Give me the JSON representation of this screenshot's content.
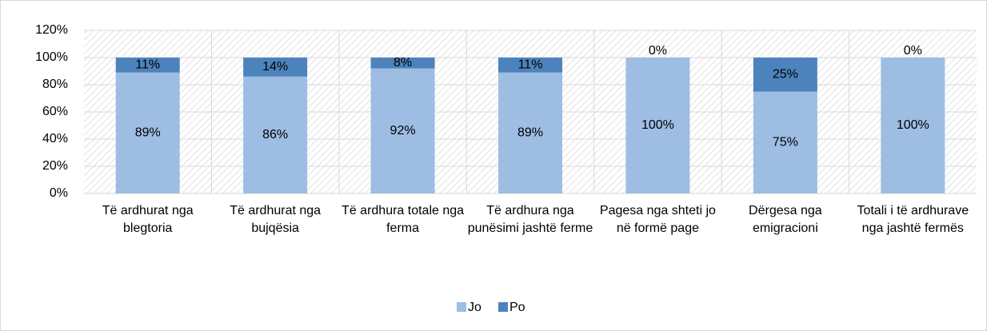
{
  "chart_data": {
    "type": "stacked_bar",
    "categories": [
      "Të ardhurat nga blegtoria",
      "Të ardhurat nga bujqësia",
      "Të ardhura totale nga ferma",
      "Të ardhura nga punësimi jashtë ferme",
      "Pagesa nga shteti jo në formë page",
      "Dërgesa nga emigracioni",
      "Totali i të ardhurave nga jashtë fermës"
    ],
    "series": [
      {
        "name": "Jo",
        "color": "#9dbde3",
        "values": [
          89,
          86,
          92,
          89,
          100,
          75,
          100
        ],
        "value_labels": [
          "89%",
          "86%",
          "92%",
          "89%",
          "100%",
          "75%",
          "100%"
        ]
      },
      {
        "name": "Po",
        "color": "#4d83bd",
        "values": [
          11,
          14,
          8,
          11,
          0,
          25,
          0
        ],
        "value_labels": [
          "11%",
          "14%",
          "8%",
          "11%",
          "0%",
          "25%",
          "0%"
        ]
      }
    ],
    "ylim": [
      0,
      120
    ],
    "yticks": [
      {
        "value": 0,
        "label": "0%"
      },
      {
        "value": 20,
        "label": "20%"
      },
      {
        "value": 40,
        "label": "40%"
      },
      {
        "value": 60,
        "label": "60%"
      },
      {
        "value": 80,
        "label": "80%"
      },
      {
        "value": 100,
        "label": "100%"
      },
      {
        "value": 120,
        "label": "120%"
      }
    ],
    "grid": true,
    "legend": "bottom"
  }
}
